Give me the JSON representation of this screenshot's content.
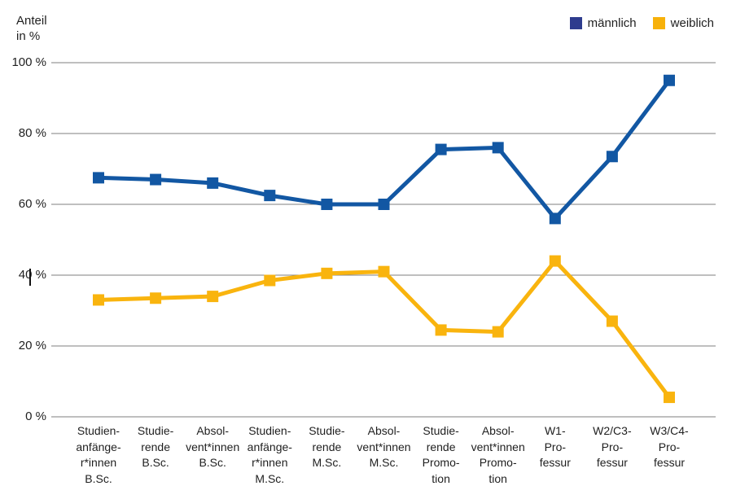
{
  "axis_title": "Anteil\nin %",
  "legend": {
    "items": [
      {
        "key": "maennlich",
        "label": "männlich",
        "color": "#2e3c8e"
      },
      {
        "key": "weiblich",
        "label": "weiblich",
        "color": "#f7b10a"
      }
    ]
  },
  "colors": {
    "background": "#ffffff",
    "gridline": "#7f7f7f",
    "text": "#1f1f1f",
    "maennlich_line": "#1257a3",
    "weiblich_line": "#f9b40e"
  },
  "chart_data": {
    "type": "line",
    "title": "Anteil in %",
    "ylabel": "Anteil in %",
    "xlabel": "",
    "ylim": [
      0,
      100
    ],
    "grid": "horizontal-only",
    "legend_position": "top-right",
    "marker": "square",
    "yticks": [
      {
        "value": 100,
        "label": "100 %"
      },
      {
        "value": 80,
        "label": "80 %"
      },
      {
        "value": 60,
        "label": "60 %"
      },
      {
        "value": 40,
        "label": "40 %"
      },
      {
        "value": 20,
        "label": "20 %"
      },
      {
        "value": 0,
        "label": "0 %"
      }
    ],
    "categories": [
      "Studienanfänger*innen B.Sc.",
      "Studierende B.Sc.",
      "Absolvent*innen B.Sc.",
      "Studienanfänger*innen M.Sc.",
      "Studierende M.Sc.",
      "Absolvent*innen M.Sc.",
      "Studierende Promotion",
      "Absolvent*innen Promotion",
      "W1-Professur",
      "W2/C3-Professur",
      "W3/C4-Professur"
    ],
    "category_label_lines": [
      [
        "Studien-",
        "anfänge-",
        "r*innen",
        "B.Sc."
      ],
      [
        "Studie-",
        "rende",
        "B.Sc."
      ],
      [
        "Absol-",
        "vent*innen",
        "B.Sc."
      ],
      [
        "Studien-",
        "anfänge-",
        "r*innen",
        "M.Sc."
      ],
      [
        "Studie-",
        "rende",
        "M.Sc."
      ],
      [
        "Absol-",
        "vent*innen",
        "M.Sc."
      ],
      [
        "Studie-",
        "rende",
        "Promo-",
        "tion"
      ],
      [
        "Absol-",
        "vent*innen",
        "Promo-",
        "tion"
      ],
      [
        "W1-",
        "Pro-",
        "fessur"
      ],
      [
        "W2/C3-",
        "Pro-",
        "fessur"
      ],
      [
        "W3/C4-",
        "Pro-",
        "fessur"
      ]
    ],
    "series": [
      {
        "key": "maennlich",
        "name": "männlich",
        "color": "#1257a3",
        "marker": "square",
        "values": [
          67.5,
          67,
          66,
          62.5,
          60,
          60,
          75.5,
          76,
          56,
          73.5,
          95
        ]
      },
      {
        "key": "weiblich",
        "name": "weiblich",
        "color": "#f9b40e",
        "marker": "square",
        "values": [
          33,
          33.5,
          34,
          38.5,
          40.5,
          41,
          24.5,
          24,
          44,
          27,
          5.5
        ]
      }
    ]
  }
}
